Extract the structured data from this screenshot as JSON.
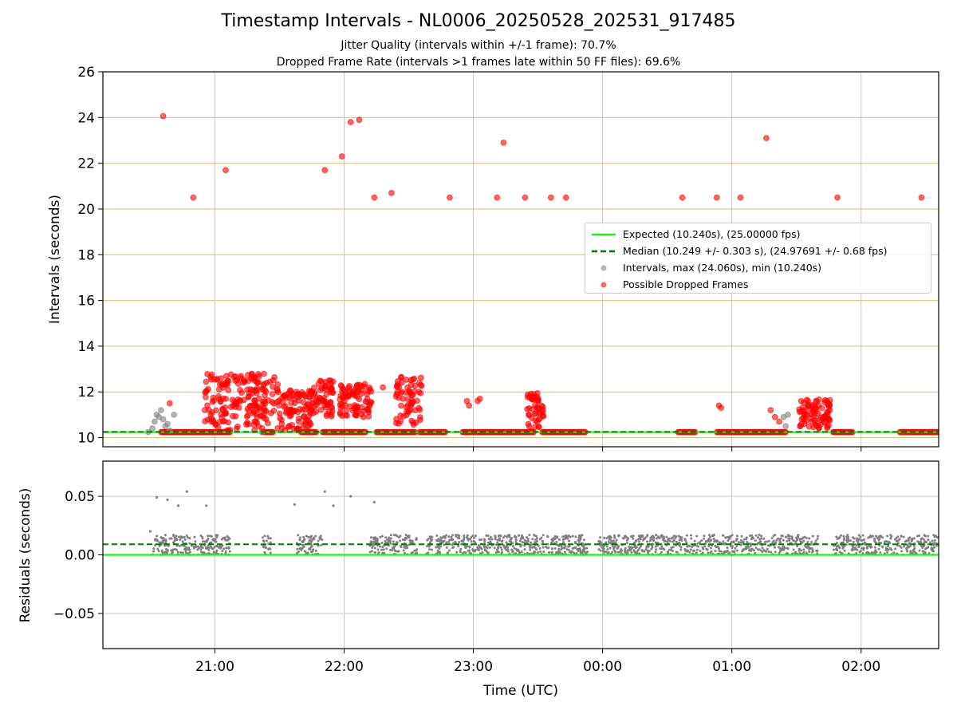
{
  "figure": {
    "title": "Timestamp Intervals - NL0006_20250528_202531_917485",
    "subtitle_1": "Jitter Quality (intervals within +/-1 frame): 70.7%",
    "subtitle_2": "Dropped Frame Rate (intervals >1 frames late within 50 FF files): 69.6%"
  },
  "legend": {
    "expected": "Expected (10.240s), (25.00000 fps)",
    "median": "Median (10.249 +/- 0.303 s), (24.97691 +/- 0.68 fps)",
    "intervals": "Intervals, max (24.060s), min (10.240s)",
    "dropped": "Possible Dropped Frames"
  },
  "colors": {
    "expected_line": "#22ee22",
    "median_line": "#007700",
    "intervals_marker": "#808080",
    "dropped_marker": "#ff0000",
    "hgrid_top": "#d9bf7a",
    "vgrid": "#c8c8c8"
  },
  "chart_data": [
    {
      "type": "scatter",
      "xlabel": "",
      "ylabel": "Intervals (seconds)",
      "xlim": [
        "20:08",
        "02:36"
      ],
      "ylim": [
        9.6,
        26
      ],
      "yticks": [
        10,
        12,
        14,
        16,
        18,
        20,
        22,
        24,
        26
      ],
      "grid": true,
      "legend_position": "center-right",
      "reference_lines": [
        {
          "name": "Expected (10.240s), (25.00000 fps)",
          "y": 10.24,
          "style": "solid"
        },
        {
          "name": "Median (10.249 +/- 0.303 s), (24.97691 +/- 0.68 fps)",
          "y": 10.249,
          "style": "dashed"
        }
      ],
      "dense_baseline_segments": [
        {
          "from": "20:35",
          "to": "21:07",
          "y": 10.24
        },
        {
          "from": "21:22",
          "to": "21:27",
          "y": 10.24
        },
        {
          "from": "21:40",
          "to": "21:47",
          "y": 10.24
        },
        {
          "from": "21:50",
          "to": "22:10",
          "y": 10.24
        },
        {
          "from": "22:15",
          "to": "22:33",
          "y": 10.24
        },
        {
          "from": "22:35",
          "to": "22:47",
          "y": 10.24
        },
        {
          "from": "22:55",
          "to": "23:28",
          "y": 10.24
        },
        {
          "from": "23:32",
          "to": "23:52",
          "y": 10.24
        },
        {
          "from": "00:35",
          "to": "00:43",
          "y": 10.24
        },
        {
          "from": "00:53",
          "to": "01:25",
          "y": 10.24
        },
        {
          "from": "01:47",
          "to": "01:56",
          "y": 10.24
        },
        {
          "from": "02:18",
          "to": "02:36",
          "y": 10.24
        }
      ],
      "dense_clusters": [
        {
          "from": "20:55",
          "to": "21:30",
          "y_min": 10.3,
          "y_max": 12.8
        },
        {
          "from": "21:30",
          "to": "21:45",
          "y_min": 10.3,
          "y_max": 12.1
        },
        {
          "from": "21:43",
          "to": "21:55",
          "y_min": 10.9,
          "y_max": 12.5
        },
        {
          "from": "21:58",
          "to": "22:13",
          "y_min": 10.9,
          "y_max": 12.4
        },
        {
          "from": "22:24",
          "to": "22:36",
          "y_min": 10.5,
          "y_max": 12.7
        },
        {
          "from": "23:25",
          "to": "23:33",
          "y_min": 10.3,
          "y_max": 12.0
        },
        {
          "from": "01:31",
          "to": "01:46",
          "y_min": 10.4,
          "y_max": 11.7
        }
      ],
      "series": [
        {
          "name": "Intervals, max (24.060s), min (10.240s)",
          "points": [
            [
              "20:29",
              10.24
            ],
            [
              "20:31",
              10.4
            ],
            [
              "20:32",
              10.7
            ],
            [
              "20:33",
              11.0
            ],
            [
              "20:34",
              10.9
            ],
            [
              "20:35",
              11.2
            ],
            [
              "20:36",
              10.8
            ],
            [
              "20:37",
              10.5
            ],
            [
              "20:38",
              10.6
            ],
            [
              "20:39",
              10.3
            ],
            [
              "20:41",
              11.0
            ],
            [
              "21:22",
              10.24
            ],
            [
              "01:24",
              10.9
            ],
            [
              "01:25",
              10.5
            ],
            [
              "01:26",
              11.0
            ]
          ]
        },
        {
          "name": "Possible Dropped Frames",
          "points": [
            [
              "20:36",
              24.06
            ],
            [
              "20:50",
              20.5
            ],
            [
              "21:05",
              21.7
            ],
            [
              "21:51",
              21.7
            ],
            [
              "21:59",
              22.3
            ],
            [
              "22:03",
              23.8
            ],
            [
              "22:07",
              23.9
            ],
            [
              "22:14",
              20.5
            ],
            [
              "22:22",
              20.7
            ],
            [
              "22:49",
              20.5
            ],
            [
              "23:11",
              20.5
            ],
            [
              "23:14",
              22.9
            ],
            [
              "23:24",
              20.5
            ],
            [
              "23:36",
              20.5
            ],
            [
              "23:43",
              20.5
            ],
            [
              "00:37",
              20.5
            ],
            [
              "00:53",
              20.5
            ],
            [
              "01:04",
              20.5
            ],
            [
              "01:16",
              23.1
            ],
            [
              "01:49",
              20.5
            ],
            [
              "02:28",
              20.5
            ],
            [
              "20:39",
              11.5
            ],
            [
              "21:53",
              12.5
            ],
            [
              "22:06",
              12.3
            ],
            [
              "22:18",
              12.2
            ],
            [
              "22:57",
              11.6
            ],
            [
              "22:58",
              11.4
            ],
            [
              "23:02",
              11.6
            ],
            [
              "23:03",
              11.7
            ],
            [
              "23:27",
              11.7
            ],
            [
              "00:54",
              11.4
            ],
            [
              "00:55",
              11.3
            ],
            [
              "01:18",
              11.2
            ],
            [
              "01:20",
              10.9
            ],
            [
              "01:22",
              10.7
            ],
            [
              "01:39",
              11.6
            ],
            [
              "23:26",
              11.8
            ],
            [
              "23:28",
              11.9
            ],
            [
              "23:30",
              11.6
            ]
          ]
        }
      ]
    },
    {
      "type": "scatter",
      "xlabel": "Time (UTC)",
      "ylabel": "Residuals (seconds)",
      "xlim": [
        "20:08",
        "02:36"
      ],
      "ylim": [
        -0.08,
        0.08
      ],
      "yticks": [
        -0.05,
        0.0,
        0.05
      ],
      "ytick_labels": [
        "−0.05",
        "0.00",
        "0.05"
      ],
      "xtick_labels": [
        "21:00",
        "22:00",
        "23:00",
        "00:00",
        "01:00",
        "02:00"
      ],
      "grid": true,
      "reference_lines": [
        {
          "y": 0.0,
          "style": "solid"
        },
        {
          "y": 0.009,
          "style": "dashed"
        }
      ],
      "residual_band": {
        "y_min": 0.0,
        "y_max": 0.017
      },
      "residual_coverage": [
        {
          "from": "20:31",
          "to": "21:07"
        },
        {
          "from": "21:22",
          "to": "21:26"
        },
        {
          "from": "21:38",
          "to": "21:50"
        },
        {
          "from": "22:12",
          "to": "22:34"
        },
        {
          "from": "22:38",
          "to": "23:53"
        },
        {
          "from": "23:58",
          "to": "01:40"
        },
        {
          "from": "01:47",
          "to": "02:36"
        }
      ],
      "outliers": [
        [
          "20:30",
          0.02
        ],
        [
          "20:33",
          0.049
        ],
        [
          "20:38",
          0.047
        ],
        [
          "20:43",
          0.042
        ],
        [
          "20:47",
          0.054
        ],
        [
          "20:56",
          0.042
        ],
        [
          "21:37",
          0.043
        ],
        [
          "21:51",
          0.054
        ],
        [
          "21:55",
          0.042
        ],
        [
          "22:03",
          0.05
        ],
        [
          "22:14",
          0.045
        ]
      ]
    }
  ]
}
